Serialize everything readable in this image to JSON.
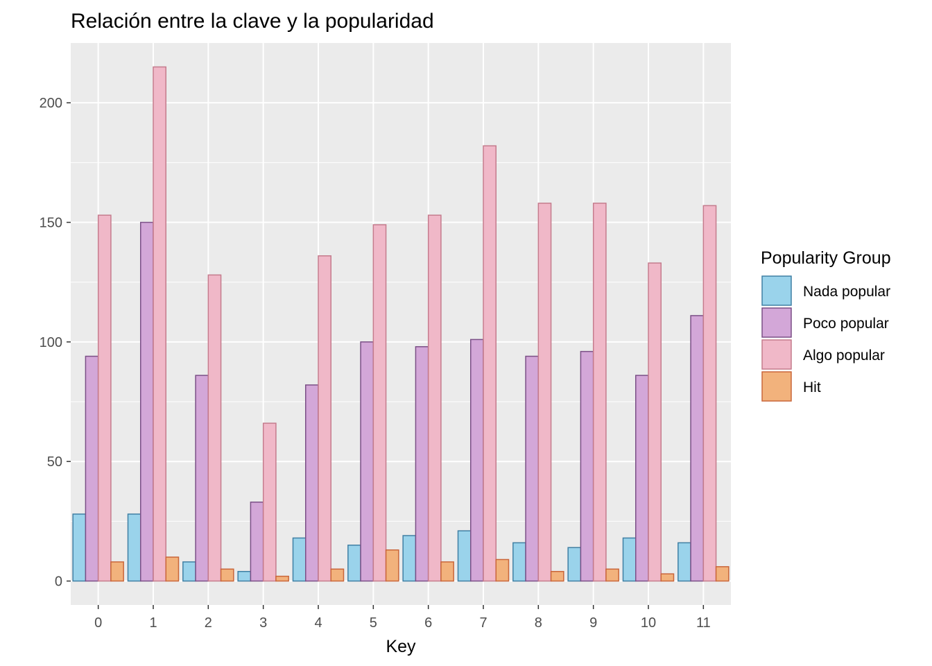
{
  "chart_data": {
    "type": "bar",
    "title": "Relación entre la clave y la popularidad",
    "xlabel": "Key",
    "ylabel": "",
    "categories": [
      "0",
      "1",
      "2",
      "3",
      "4",
      "5",
      "6",
      "7",
      "8",
      "9",
      "10",
      "11"
    ],
    "series": [
      {
        "name": "Nada popular",
        "values": [
          28,
          28,
          8,
          4,
          18,
          15,
          19,
          21,
          16,
          14,
          18,
          16
        ],
        "fill": "#9ad3eb",
        "stroke": "#3f7fa3"
      },
      {
        "name": "Poco popular",
        "values": [
          94,
          150,
          86,
          33,
          82,
          100,
          98,
          101,
          94,
          96,
          86,
          111
        ],
        "fill": "#d3a7d8",
        "stroke": "#7a4f86"
      },
      {
        "name": "Algo popular",
        "values": [
          153,
          215,
          128,
          66,
          136,
          149,
          153,
          182,
          158,
          158,
          133,
          157
        ],
        "fill": "#f0b8c8",
        "stroke": "#c47b8c"
      },
      {
        "name": "Hit",
        "values": [
          8,
          10,
          5,
          2,
          5,
          13,
          8,
          9,
          4,
          5,
          3,
          6
        ],
        "fill": "#f2b27c",
        "stroke": "#c9663a"
      }
    ],
    "yticks": [
      0,
      50,
      100,
      150,
      200
    ],
    "ylim": [
      -10,
      225
    ],
    "grid": true,
    "panel_background": "#ebebeb",
    "legend": {
      "title": "Popularity Group",
      "position": "right"
    }
  }
}
